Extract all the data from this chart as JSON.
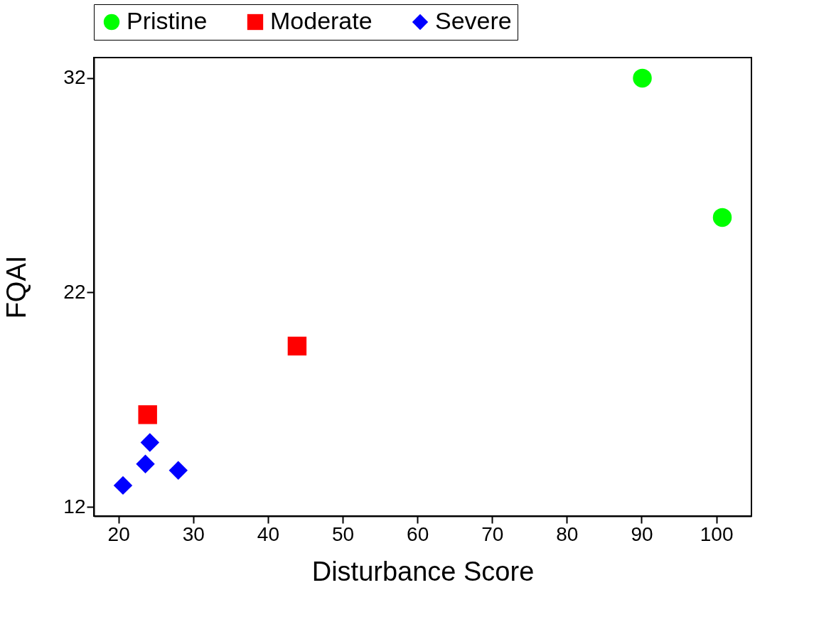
{
  "chart_data": {
    "type": "scatter",
    "xlabel": "Disturbance Score",
    "ylabel": "FQAI",
    "xlim": [
      16.7,
      104.7
    ],
    "ylim": [
      11.57,
      32.96
    ],
    "xticks": [
      20,
      30,
      40,
      50,
      60,
      70,
      80,
      90,
      100
    ],
    "yticks": [
      12,
      22,
      32
    ],
    "grid": false,
    "legend": "top",
    "series": [
      {
        "name": "Pristine",
        "color": "#00ff00",
        "marker": "circle",
        "x": [
          90.1,
          100.8
        ],
        "values": [
          32.0,
          25.5
        ]
      },
      {
        "name": "Moderate",
        "color": "#ff0000",
        "marker": "square",
        "x": [
          43.9,
          23.9
        ],
        "values": [
          19.5,
          16.3
        ]
      },
      {
        "name": "Severe",
        "color": "#0000ff",
        "marker": "diamond",
        "x": [
          24.2,
          23.6,
          28.0,
          20.6
        ],
        "values": [
          15.0,
          14.0,
          13.7,
          13.0
        ]
      }
    ]
  }
}
